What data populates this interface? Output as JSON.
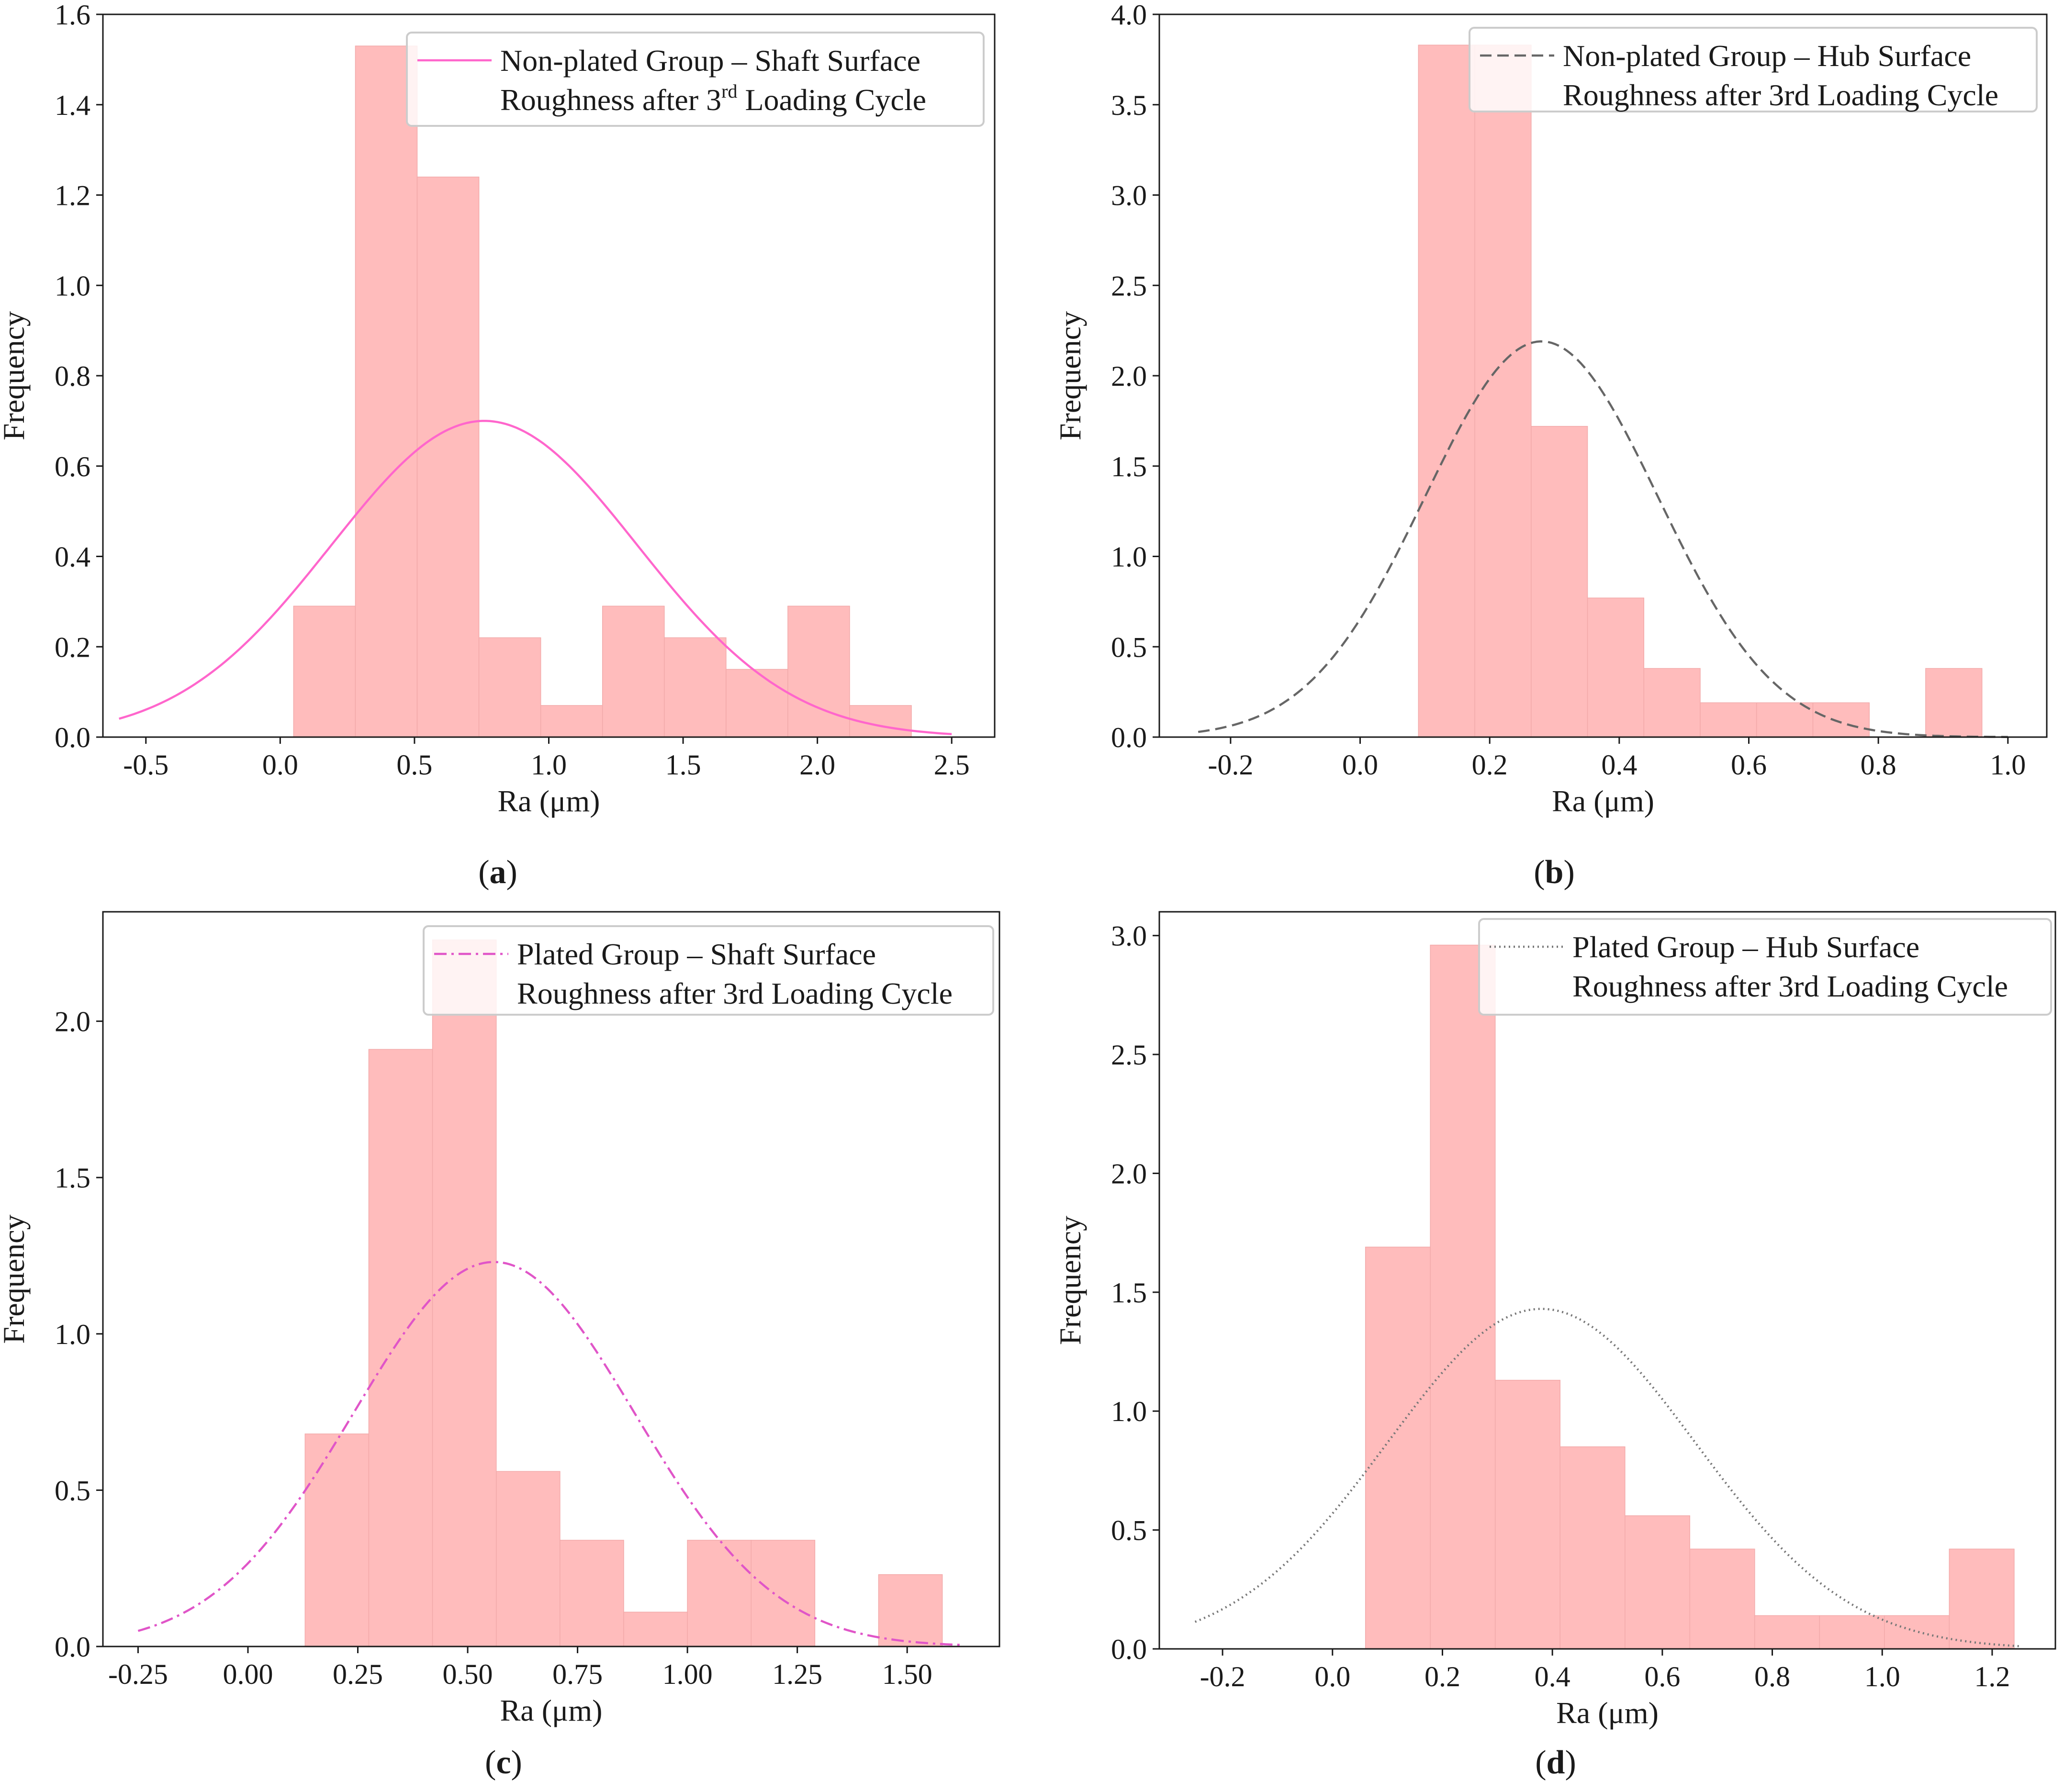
{
  "chart_data": [
    {
      "type": "bar",
      "panel": "(a)",
      "caption_letter": "a",
      "xlabel": "Ra (μm)",
      "ylabel": "Frequency",
      "xlim": [
        -0.66,
        2.66
      ],
      "ylim": [
        0,
        1.6
      ],
      "xticks": [
        -0.5,
        0.0,
        0.5,
        1.0,
        1.5,
        2.0,
        2.5
      ],
      "xtick_labels": [
        "-0.5",
        "0.0",
        "0.5",
        "1.0",
        "1.5",
        "2.0",
        "2.5"
      ],
      "yticks": [
        0.0,
        0.2,
        0.4,
        0.6,
        0.8,
        1.0,
        1.2,
        1.4,
        1.6
      ],
      "ytick_labels": [
        "0.0",
        "0.2",
        "0.4",
        "0.6",
        "0.8",
        "1.0",
        "1.2",
        "1.4",
        "1.6"
      ],
      "bin_edges": [
        0.05,
        0.28,
        0.51,
        0.74,
        0.97,
        1.2,
        1.43,
        1.66,
        1.89,
        2.12,
        2.35
      ],
      "values": [
        0.29,
        1.53,
        1.24,
        0.22,
        0.07,
        0.29,
        0.22,
        0.15,
        0.29,
        0.07
      ],
      "bar_color": "#ffbcbc",
      "curve": {
        "type": "normal",
        "mean": 0.76,
        "std": 0.57,
        "peak": 0.7,
        "x_range": [
          -0.6,
          2.5
        ],
        "color": "#ff66cc",
        "style": "solid"
      },
      "legend": {
        "line1": "Non-plated Group – Shaft Surface",
        "line2_pre": "Roughness after 3",
        "line2_sup": "rd",
        "line2_post": " Loading Cycle",
        "location": "top-right"
      }
    },
    {
      "type": "bar",
      "panel": "(b)",
      "caption_letter": "b",
      "xlabel": "Ra (μm)",
      "ylabel": "Frequency",
      "xlim": [
        -0.31,
        1.06
      ],
      "ylim": [
        0,
        4.0
      ],
      "xticks": [
        -0.2,
        0.0,
        0.2,
        0.4,
        0.6,
        0.8,
        1.0
      ],
      "xtick_labels": [
        "-0.2",
        "0.0",
        "0.2",
        "0.4",
        "0.6",
        "0.8",
        "1.0"
      ],
      "yticks": [
        0.0,
        0.5,
        1.0,
        1.5,
        2.0,
        2.5,
        3.0,
        3.5,
        4.0
      ],
      "ytick_labels": [
        "0.0",
        "0.5",
        "1.0",
        "1.5",
        "2.0",
        "2.5",
        "3.0",
        "3.5",
        "4.0"
      ],
      "bin_edges": [
        0.09,
        0.177,
        0.264,
        0.351,
        0.438,
        0.525,
        0.612,
        0.699,
        0.786,
        0.873,
        0.96
      ],
      "values": [
        3.83,
        3.83,
        1.72,
        0.77,
        0.38,
        0.19,
        0.19,
        0.19,
        0.0,
        0.38
      ],
      "bar_color": "#ffbcbc",
      "curve": {
        "type": "normal",
        "mean": 0.28,
        "std": 0.18,
        "peak": 2.19,
        "x_range": [
          -0.25,
          1.0
        ],
        "color": "#666666",
        "style": "dashed"
      },
      "legend": {
        "line1": "Non-plated Group – Hub Surface",
        "line2_pre": "Roughness after 3rd Loading Cycle",
        "line2_sup": "",
        "line2_post": "",
        "location": "top-right"
      }
    },
    {
      "type": "bar",
      "panel": "(c)",
      "caption_letter": "c",
      "xlabel": "Ra (μm)",
      "ylabel": "Frequency",
      "xlim": [
        -0.33,
        1.71
      ],
      "ylim": [
        0,
        2.35
      ],
      "xticks": [
        -0.25,
        0.0,
        0.25,
        0.5,
        0.75,
        1.0,
        1.25,
        1.5
      ],
      "xtick_labels": [
        "-0.25",
        "0.00",
        "0.25",
        "0.50",
        "0.75",
        "1.00",
        "1.25",
        "1.50"
      ],
      "yticks": [
        0.0,
        0.5,
        1.0,
        1.5,
        2.0
      ],
      "ytick_labels": [
        "0.0",
        "0.5",
        "1.0",
        "1.5",
        "2.0"
      ],
      "bin_edges": [
        0.13,
        0.275,
        0.42,
        0.565,
        0.71,
        0.855,
        1.0,
        1.145,
        1.29,
        1.435,
        1.58
      ],
      "values": [
        0.68,
        1.91,
        2.26,
        0.56,
        0.34,
        0.11,
        0.34,
        0.34,
        0.0,
        0.23
      ],
      "bar_color": "#ffbcbc",
      "curve": {
        "type": "normal",
        "mean": 0.56,
        "std": 0.32,
        "peak": 1.23,
        "x_range": [
          -0.25,
          1.63
        ],
        "color": "#e055c8",
        "style": "dashdot"
      },
      "legend": {
        "line1": "Plated Group – Shaft Surface",
        "line2_pre": "Roughness after 3rd Loading Cycle",
        "line2_sup": "",
        "line2_post": "",
        "location": "top-right"
      }
    },
    {
      "type": "bar",
      "panel": "(d)",
      "caption_letter": "d",
      "xlabel": "Ra (μm)",
      "ylabel": "Frequency",
      "xlim": [
        -0.315,
        1.315
      ],
      "ylim": [
        0,
        3.1
      ],
      "xticks": [
        -0.2,
        0.0,
        0.2,
        0.4,
        0.6,
        0.8,
        1.0,
        1.2
      ],
      "xtick_labels": [
        "-0.2",
        "0.0",
        "0.2",
        "0.4",
        "0.6",
        "0.8",
        "1.0",
        "1.2"
      ],
      "yticks": [
        0.0,
        0.5,
        1.0,
        1.5,
        2.0,
        2.5,
        3.0
      ],
      "ytick_labels": [
        "0.0",
        "0.5",
        "1.0",
        "1.5",
        "2.0",
        "2.5",
        "3.0"
      ],
      "bin_edges": [
        0.06,
        0.178,
        0.296,
        0.414,
        0.532,
        0.65,
        0.768,
        0.886,
        1.004,
        1.122,
        1.24
      ],
      "values": [
        1.69,
        2.96,
        1.13,
        0.85,
        0.56,
        0.42,
        0.14,
        0.14,
        0.14,
        0.42
      ],
      "bar_color": "#ffbcbc",
      "curve": {
        "type": "normal",
        "mean": 0.38,
        "std": 0.28,
        "peak": 1.43,
        "x_range": [
          -0.25,
          1.25
        ],
        "color": "#777777",
        "style": "dotted"
      },
      "legend": {
        "line1": "Plated Group – Hub Surface",
        "line2_pre": "Roughness after 3rd Loading Cycle",
        "line2_sup": "",
        "line2_post": "",
        "location": "top-right"
      }
    }
  ]
}
